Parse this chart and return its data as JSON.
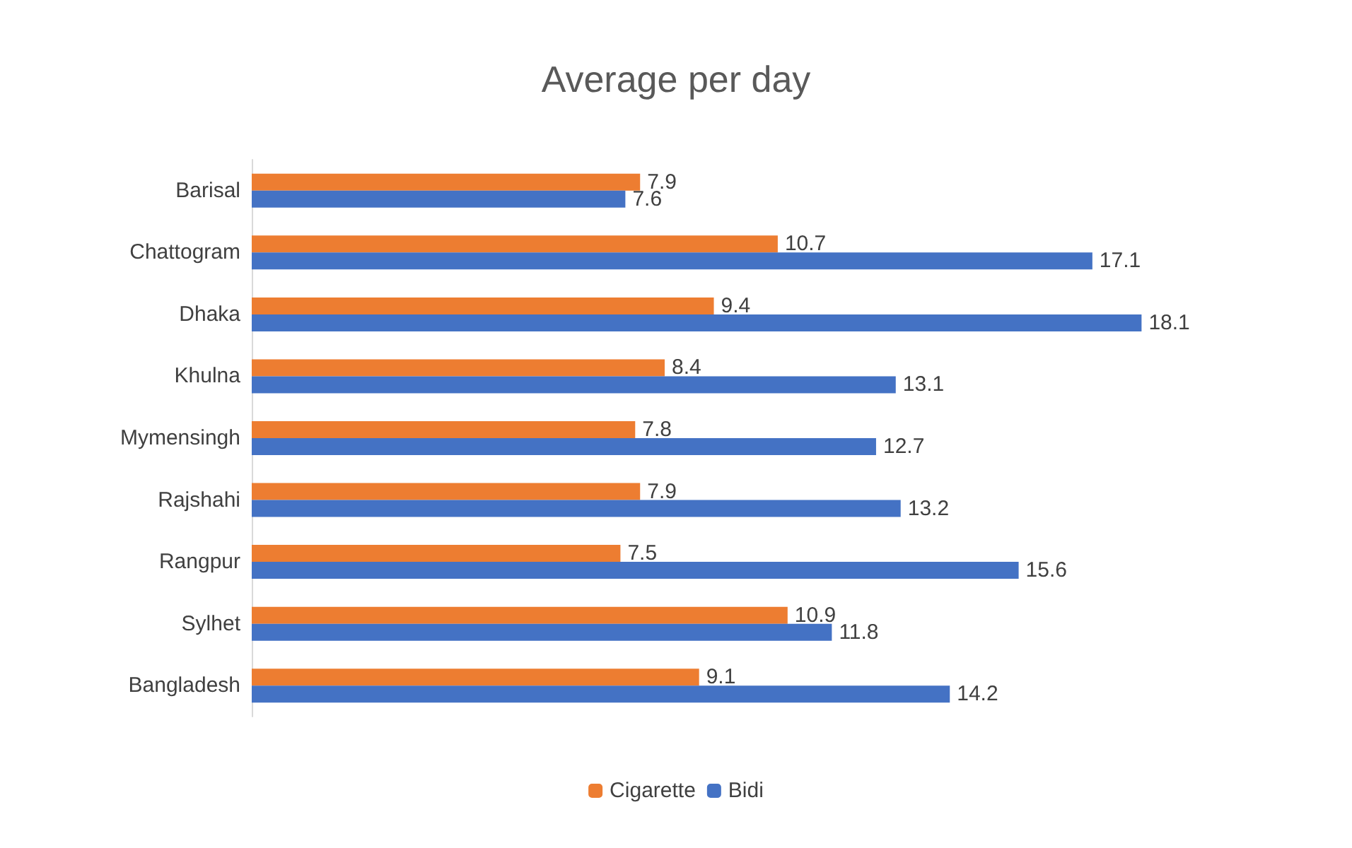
{
  "chart_data": {
    "type": "bar",
    "orientation": "horizontal",
    "title": "Average per day",
    "categories": [
      "Barisal",
      "Chattogram",
      "Dhaka",
      "Khulna",
      "Mymensingh",
      "Rajshahi",
      "Rangpur",
      "Sylhet",
      "Bangladesh"
    ],
    "series": [
      {
        "name": "Cigarette",
        "color": "#ed7d31",
        "values": [
          7.9,
          10.7,
          9.4,
          8.4,
          7.8,
          7.9,
          7.5,
          10.9,
          9.1
        ]
      },
      {
        "name": "Bidi",
        "color": "#4472c4",
        "values": [
          7.6,
          17.1,
          18.1,
          13.1,
          12.7,
          13.2,
          15.6,
          11.8,
          14.2
        ]
      }
    ],
    "data_labels": true,
    "legend": "bottom",
    "grid": false,
    "tick_labels": "y"
  }
}
